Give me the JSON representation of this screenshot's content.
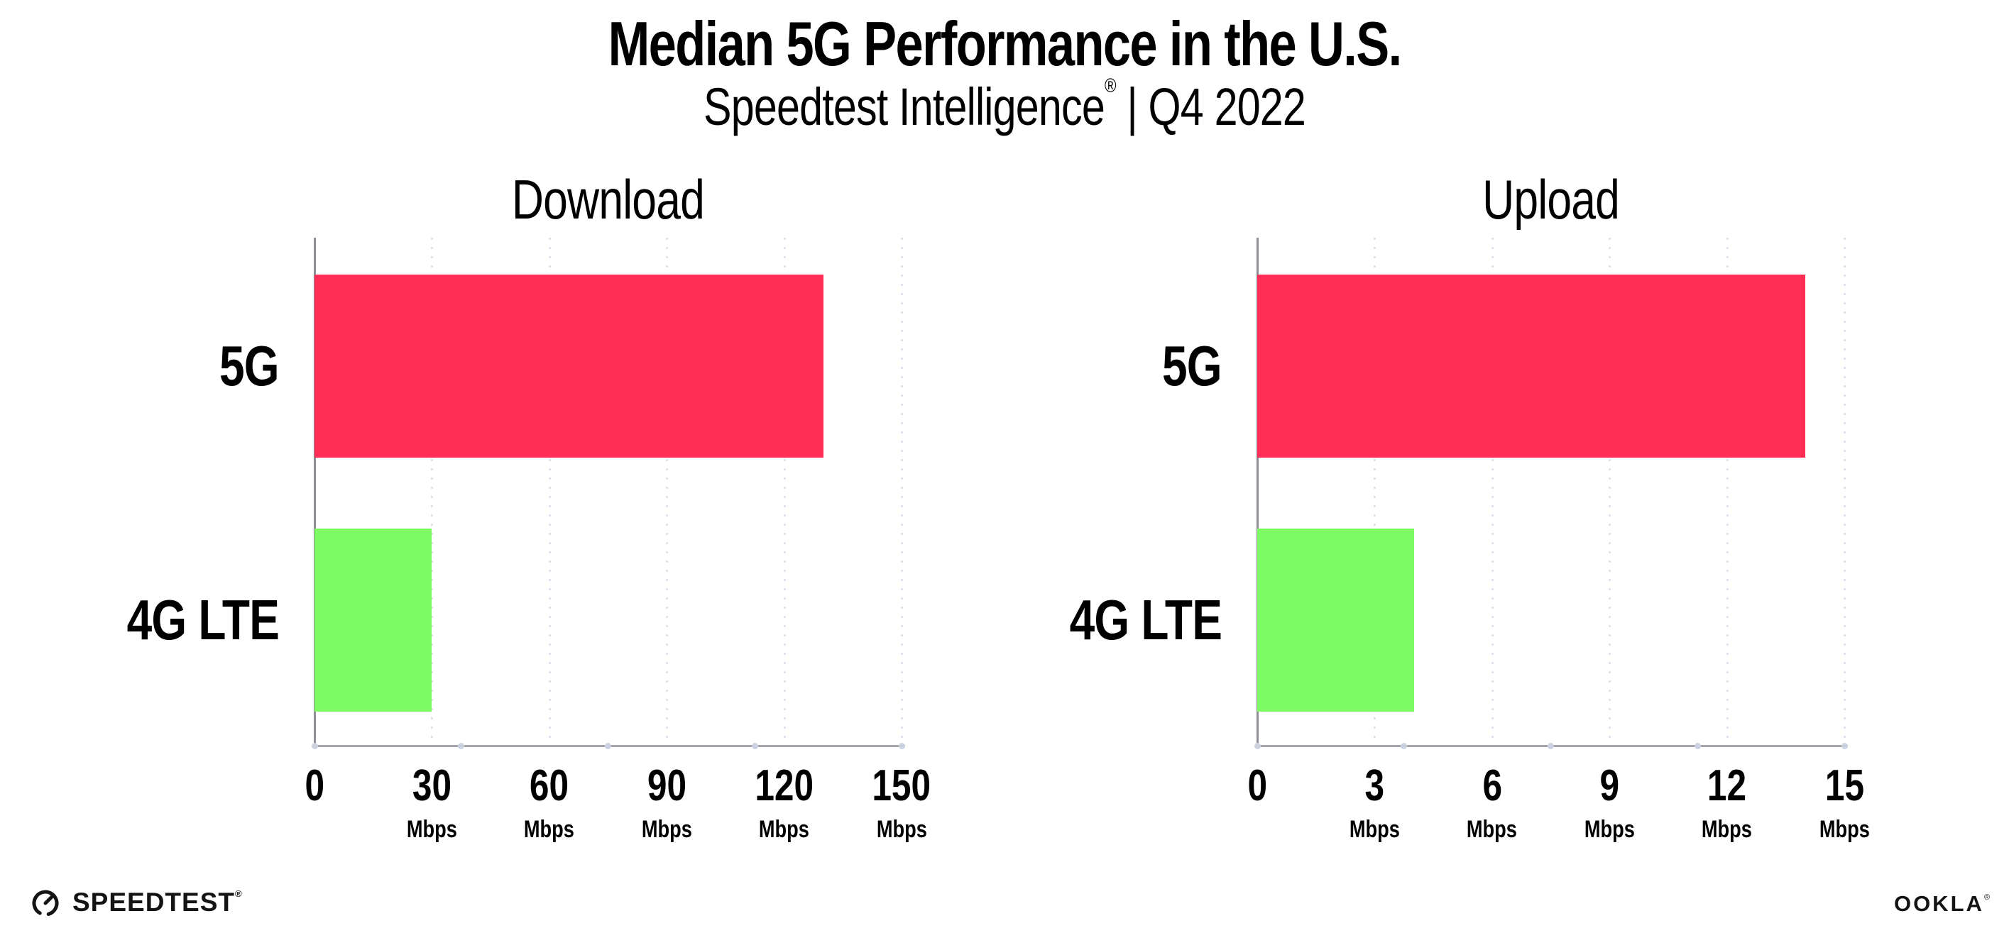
{
  "header": {
    "title": "Median 5G Performance in the U.S.",
    "subtitle": {
      "brand": "Speedtest Intelligence",
      "reg": "®",
      "rest": " | Q4 2022"
    }
  },
  "chart_data": [
    {
      "type": "bar",
      "orientation": "horizontal",
      "title": "Download",
      "categories": [
        "5G",
        "4G LTE"
      ],
      "values": [
        130,
        30
      ],
      "unit": "Mbps",
      "xlim": [
        0,
        150
      ],
      "xticks": [
        0,
        30,
        60,
        90,
        120,
        150
      ],
      "bar_colors": [
        "#FF2E57",
        "#7EFC64"
      ],
      "grid": "vertical-dotted",
      "legend": "none"
    },
    {
      "type": "bar",
      "orientation": "horizontal",
      "title": "Upload",
      "categories": [
        "5G",
        "4G LTE"
      ],
      "values": [
        14,
        4
      ],
      "unit": "Mbps",
      "xlim": [
        0,
        15
      ],
      "xticks": [
        0,
        3,
        6,
        9,
        12,
        15
      ],
      "bar_colors": [
        "#FF2E57",
        "#7EFC64"
      ],
      "grid": "vertical-dotted",
      "legend": "none"
    }
  ],
  "footer": {
    "speedtest": {
      "text": "SPEEDTEST",
      "mark": "®"
    },
    "ookla": {
      "text": "OOKLA",
      "mark": "®"
    }
  },
  "colors": {
    "text": "#000000",
    "bar_5g": "#FF2E57",
    "bar_4g_lte": "#7EFC64",
    "yaxis_line": "#8f8f96",
    "xaxis_line": "#a6a6ad",
    "grid_dot": "#e0e2ee",
    "axis_dot": "#ccd1e1"
  }
}
